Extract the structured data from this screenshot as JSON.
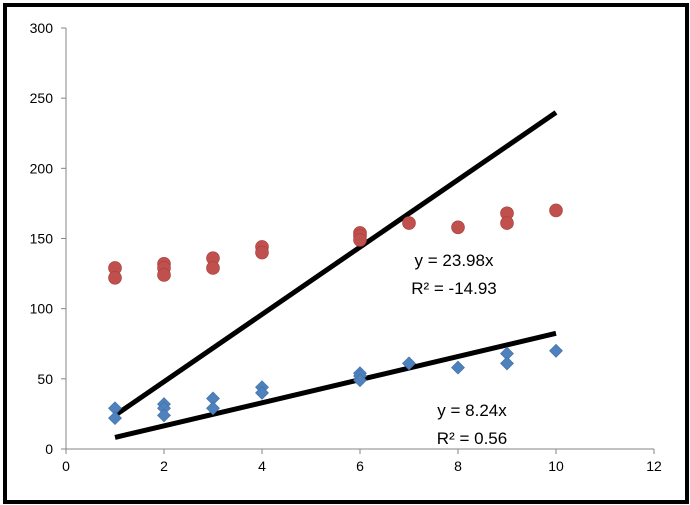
{
  "chart_data": {
    "type": "scatter",
    "title": "",
    "xlabel": "",
    "ylabel": "",
    "xlim": [
      0,
      12
    ],
    "ylim": [
      0,
      300
    ],
    "x_ticks": [
      0,
      2,
      4,
      6,
      8,
      10,
      12
    ],
    "y_ticks": [
      0,
      50,
      100,
      150,
      200,
      250,
      300
    ],
    "grid": false,
    "legend": "none",
    "series": [
      {
        "marker": "circle",
        "color": "#C0504D",
        "points": [
          [
            1,
            129
          ],
          [
            1,
            122
          ],
          [
            2,
            132
          ],
          [
            2,
            129
          ],
          [
            2,
            124
          ],
          [
            3,
            136
          ],
          [
            3,
            129
          ],
          [
            4,
            144
          ],
          [
            4,
            140
          ],
          [
            6,
            154
          ],
          [
            6,
            152
          ],
          [
            6,
            149
          ],
          [
            7,
            161
          ],
          [
            8,
            158
          ],
          [
            9,
            168
          ],
          [
            9,
            161
          ],
          [
            10,
            170
          ]
        ]
      },
      {
        "marker": "diamond",
        "color": "#4F81BD",
        "points": [
          [
            1,
            29
          ],
          [
            1,
            22
          ],
          [
            2,
            32
          ],
          [
            2,
            29
          ],
          [
            2,
            24
          ],
          [
            3,
            36
          ],
          [
            3,
            29
          ],
          [
            4,
            44
          ],
          [
            4,
            40
          ],
          [
            6,
            54
          ],
          [
            6,
            52
          ],
          [
            6,
            49
          ],
          [
            7,
            61
          ],
          [
            8,
            58
          ],
          [
            9,
            68
          ],
          [
            9,
            61
          ],
          [
            10,
            70
          ]
        ]
      }
    ],
    "trendlines": [
      {
        "color": "#000000",
        "x": [
          1,
          10
        ],
        "y": [
          23.98,
          239.8
        ],
        "equation": "y = 23.98x",
        "r2": "R² = -14.93"
      },
      {
        "color": "#000000",
        "x": [
          1,
          10
        ],
        "y": [
          8.24,
          82.4
        ],
        "equation": "y = 8.24x",
        "r2": "R² = 0.56"
      }
    ]
  }
}
